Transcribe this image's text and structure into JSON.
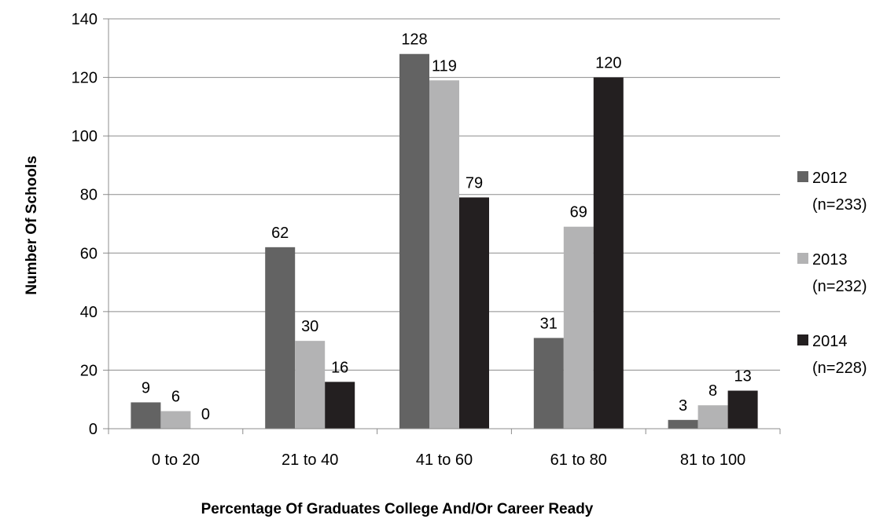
{
  "chart_data": {
    "type": "bar",
    "title": "",
    "xlabel": "Percentage Of Graduates College And/Or Career Ready",
    "ylabel": "Number Of Schools",
    "categories": [
      "0 to 20",
      "21 to 40",
      "41 to 60",
      "61 to 80",
      "81 to 100"
    ],
    "ylim": [
      0,
      140
    ],
    "yticks": [
      0,
      20,
      40,
      60,
      80,
      100,
      120,
      140
    ],
    "grid": true,
    "legend_position": "right",
    "series": [
      {
        "name": "2012",
        "name_line2": "(n=233)",
        "color": "#636363",
        "values": [
          9,
          62,
          128,
          31,
          3
        ]
      },
      {
        "name": "2013",
        "name_line2": "(n=232)",
        "color": "#b3b3b4",
        "values": [
          6,
          30,
          119,
          69,
          8
        ]
      },
      {
        "name": "2014",
        "name_line2": "(n=228)",
        "color": "#231f20",
        "values": [
          0,
          16,
          79,
          120,
          13
        ]
      }
    ]
  }
}
